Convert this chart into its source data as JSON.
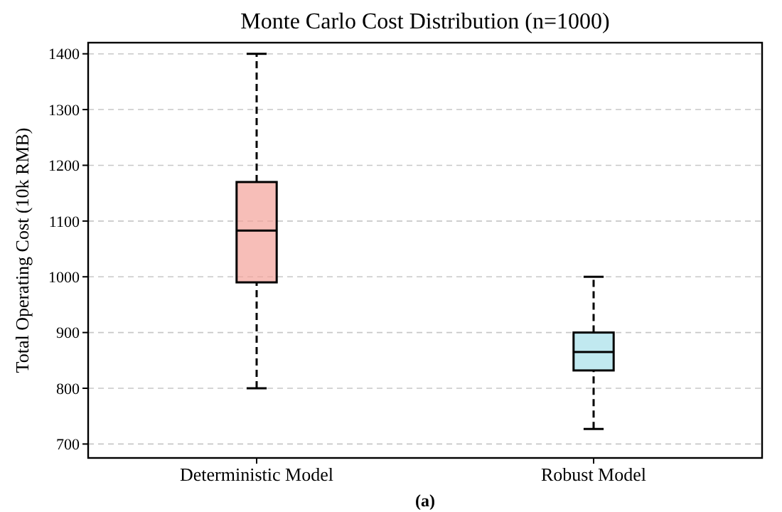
{
  "chart_data": {
    "type": "box",
    "title": "Monte Carlo Cost Distribution (n=1000)",
    "ylabel": "Total Operating Cost (10k RMB)",
    "categories": [
      "Deterministic Model",
      "Robust Model"
    ],
    "boxes": [
      {
        "low": 800,
        "q1": 990,
        "median": 1083,
        "q3": 1170,
        "high": 1400
      },
      {
        "low": 727,
        "q1": 832,
        "median": 865,
        "q3": 900,
        "high": 1000
      }
    ],
    "colors": [
      "#f4a29a",
      "#a6dfea"
    ],
    "ylim": [
      675,
      1420
    ],
    "yticks": [
      700,
      800,
      900,
      1000,
      1100,
      1200,
      1300,
      1400
    ],
    "grid": "y",
    "annotations": [
      "(a)"
    ]
  }
}
